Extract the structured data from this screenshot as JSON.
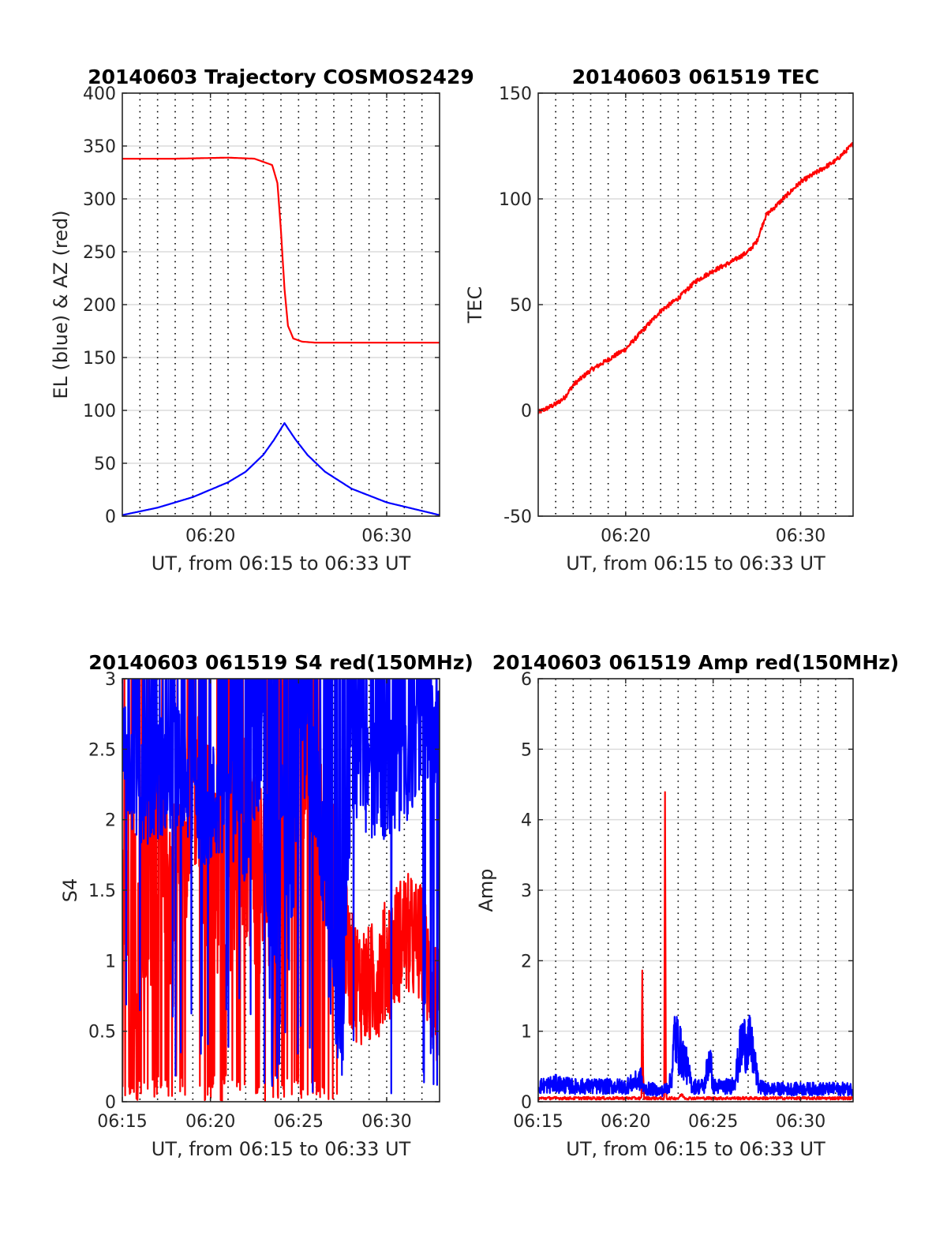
{
  "figure": {
    "background": "#ffffff"
  },
  "chart_data": [
    {
      "type": "line",
      "title": "20140603 Trajectory COSMOS2429",
      "xlabel": "UT, from 06:15 to 06:33 UT",
      "ylabel": "EL (blue) & AZ (red)",
      "xlim": [
        15,
        33
      ],
      "ylim": [
        0,
        400
      ],
      "yticks": [
        0,
        50,
        100,
        150,
        200,
        250,
        300,
        350,
        400
      ],
      "ytick_labels": [
        "0",
        "50",
        "100",
        "150",
        "200",
        "250",
        "300",
        "350",
        "400"
      ],
      "xticks": [
        20,
        30
      ],
      "xtick_labels": [
        "06:20",
        "06:30"
      ],
      "grid": true,
      "minute_grid": "dotted",
      "series": [
        {
          "color": "#ff0000",
          "x": [
            15,
            18,
            21,
            22.5,
            23.5,
            23.8,
            24.0,
            24.2,
            24.4,
            24.7,
            25.2,
            26,
            28,
            33
          ],
          "y": [
            338,
            338,
            339,
            338,
            332,
            315,
            270,
            215,
            180,
            168,
            165,
            164,
            164,
            164
          ]
        },
        {
          "color": "#0000ff",
          "x": [
            15,
            17,
            19,
            21,
            22,
            23,
            23.6,
            24.2,
            24.8,
            25.5,
            26.5,
            28,
            30,
            32,
            33
          ],
          "y": [
            1,
            8,
            18,
            32,
            42,
            58,
            72,
            88,
            73,
            58,
            42,
            26,
            13,
            5,
            1
          ]
        }
      ]
    },
    {
      "type": "line",
      "title": "20140603 061519 TEC",
      "xlabel": "UT, from 06:15 to 06:33 UT",
      "ylabel": "TEC",
      "xlim": [
        15,
        33
      ],
      "ylim": [
        -50,
        150
      ],
      "yticks": [
        -50,
        0,
        50,
        100,
        150
      ],
      "ytick_labels": [
        "-50",
        "0",
        "50",
        "100",
        "150"
      ],
      "xticks": [
        20,
        30
      ],
      "xtick_labels": [
        "06:20",
        "06:30"
      ],
      "grid": true,
      "minute_grid": "dotted",
      "series": [
        {
          "color": "#ff0000",
          "x": [
            15,
            15.5,
            16,
            16.5,
            17,
            18,
            19,
            20,
            21,
            22,
            23,
            24,
            25,
            26,
            27,
            27.5,
            28,
            29,
            30,
            31,
            32,
            33
          ],
          "y": [
            -1,
            1,
            3,
            6,
            12,
            19,
            24,
            29,
            38,
            47,
            53,
            61,
            66,
            70,
            75,
            80,
            92,
            100,
            108,
            113,
            118,
            126
          ]
        }
      ]
    },
    {
      "type": "line",
      "title": "20140603 061519 S4 red(150MHz)",
      "xlabel": "UT, from 06:15 to 06:33 UT",
      "ylabel": "S4",
      "xlim": [
        15,
        33
      ],
      "ylim": [
        0,
        3
      ],
      "yticks": [
        0,
        0.5,
        1,
        1.5,
        2,
        2.5,
        3
      ],
      "ytick_labels": [
        "0",
        "0.5",
        "1",
        "1.5",
        "2",
        "2.5",
        "3"
      ],
      "xticks": [
        15,
        20,
        25,
        30
      ],
      "xtick_labels": [
        "06:15",
        "06:20",
        "06:25",
        "06:30"
      ],
      "grid": true,
      "minute_grid": "dotted",
      "series": [
        {
          "color": "#ff0000",
          "x": [
            15,
            16,
            17,
            18,
            19,
            20,
            21,
            22,
            23,
            24,
            25,
            26,
            27,
            28,
            29,
            30,
            31,
            32,
            33
          ],
          "y": [
            1.8,
            1.1,
            1.9,
            1.4,
            2.5,
            1.7,
            1.6,
            2.0,
            1.5,
            2.3,
            2.8,
            2.2,
            1.6,
            0.9,
            0.8,
            1.0,
            1.2,
            1.1,
            0.6
          ]
        },
        {
          "color": "#0000ff",
          "x": [
            15,
            16,
            17,
            18,
            19,
            20,
            21,
            22,
            23,
            23.5,
            24,
            24.5,
            25,
            26,
            27,
            27.5,
            28,
            29,
            30,
            31,
            32,
            33
          ],
          "y": [
            2.5,
            2.2,
            2.3,
            2.4,
            2.2,
            2.1,
            2.2,
            2.0,
            2.6,
            0.45,
            2.4,
            1.1,
            2.7,
            2.2,
            0.8,
            0.55,
            2.5,
            2.3,
            2.3,
            2.4,
            2.6,
            2.5
          ]
        }
      ]
    },
    {
      "type": "line",
      "title": "20140603 061519 Amp red(150MHz)",
      "xlabel": "UT, from 06:15 to 06:33 UT",
      "ylabel": "Amp",
      "xlim": [
        15,
        33
      ],
      "ylim": [
        0,
        6
      ],
      "yticks": [
        0,
        1,
        2,
        3,
        4,
        5,
        6
      ],
      "ytick_labels": [
        "0",
        "1",
        "2",
        "3",
        "4",
        "5",
        "6"
      ],
      "xticks": [
        15,
        20,
        25,
        30
      ],
      "xtick_labels": [
        "06:15",
        "06:20",
        "06:25",
        "06:30"
      ],
      "grid": true,
      "minute_grid": "dotted",
      "series": [
        {
          "color": "#ff0000",
          "x": [
            15,
            20.9,
            20.95,
            21.0,
            21.05,
            22.2,
            22.25,
            22.3,
            22.35,
            23.0,
            23.2,
            23.4,
            33
          ],
          "y": [
            0.05,
            0.05,
            1.85,
            0.4,
            0.05,
            0.05,
            4.4,
            0.2,
            0.05,
            0.05,
            0.1,
            0.05,
            0.05
          ]
        },
        {
          "color": "#0000ff",
          "x": [
            15,
            16,
            17,
            18,
            19,
            20,
            20.9,
            21,
            21.5,
            22,
            22.3,
            22.6,
            22.8,
            23.1,
            23.4,
            23.8,
            24.5,
            24.8,
            25,
            25.2,
            26,
            26.3,
            26.6,
            27,
            27.3,
            27.6,
            28,
            29,
            30,
            31,
            32,
            33
          ],
          "y": [
            0.3,
            0.35,
            0.3,
            0.3,
            0.3,
            0.3,
            0.45,
            0.25,
            0.25,
            0.2,
            0.25,
            0.4,
            1.3,
            1.0,
            0.8,
            0.3,
            0.3,
            0.95,
            0.3,
            0.3,
            0.3,
            0.5,
            1.1,
            1.2,
            0.9,
            0.3,
            0.25,
            0.25,
            0.25,
            0.25,
            0.25,
            0.25
          ]
        }
      ]
    }
  ]
}
